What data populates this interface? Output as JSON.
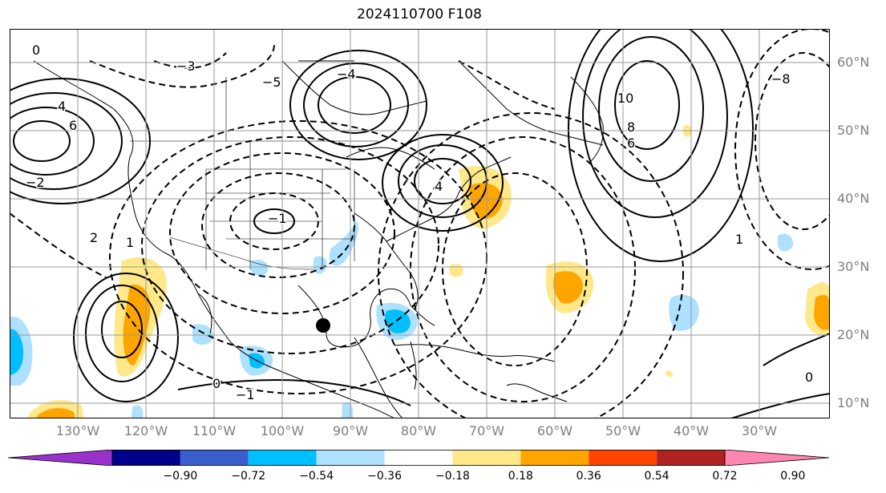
{
  "title": "2024110700 F108",
  "lat_labels": [
    "60°N",
    "50°N",
    "40°N",
    "30°N",
    "20°N",
    "10°N"
  ],
  "lon_labels": [
    "130°W",
    "120°W",
    "110°W",
    "100°W",
    "90°W",
    "80°W",
    "70°W",
    "60°W",
    "50°W",
    "40°W",
    "30°W"
  ],
  "colorbar": {
    "ticks": [
      "−0.90",
      "−0.72",
      "−0.54",
      "−0.36",
      "−0.18",
      "0.18",
      "0.36",
      "0.54",
      "0.72",
      "0.90"
    ],
    "colors": [
      "#9932cc",
      "#00008b",
      "#3a5fcd",
      "#00bfff",
      "#aee0ff",
      "#ffffff",
      "#ffe88a",
      "#ffa500",
      "#ff4500",
      "#b22222",
      "#ff86b0"
    ]
  },
  "contour_labels": [
    "0",
    "−2",
    "−3",
    "4",
    "6",
    "2",
    "1",
    "−1",
    "−4",
    "4",
    "6",
    "8",
    "10",
    "−1",
    "1",
    "0",
    "0",
    "−8",
    "−5"
  ]
}
